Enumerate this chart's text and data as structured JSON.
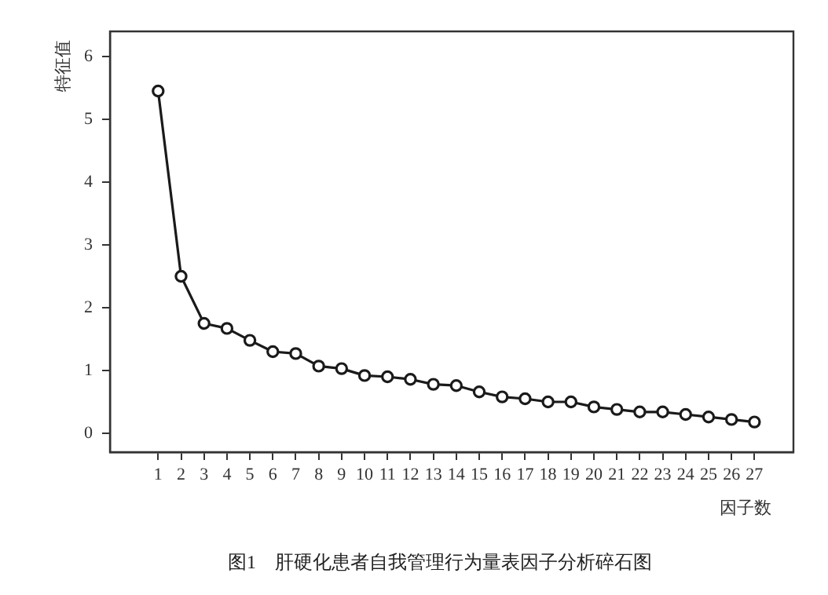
{
  "chart_data": {
    "type": "line",
    "title": "图1　肝硬化患者自我管理行为量表因子分析碎石图",
    "xlabel": "因子数",
    "ylabel": "特征值",
    "x": [
      1,
      2,
      3,
      4,
      5,
      6,
      7,
      8,
      9,
      10,
      11,
      12,
      13,
      14,
      15,
      16,
      17,
      18,
      19,
      20,
      21,
      22,
      23,
      24,
      25,
      26,
      27
    ],
    "xlim": [
      -1.1,
      28.7
    ],
    "xticks": [
      1,
      2,
      3,
      4,
      5,
      6,
      7,
      8,
      9,
      10,
      11,
      12,
      13,
      14,
      15,
      16,
      17,
      18,
      19,
      20,
      21,
      22,
      23,
      24,
      25,
      26,
      27
    ],
    "ylim": [
      -0.3,
      6.4
    ],
    "yticks": [
      0,
      1,
      2,
      3,
      4,
      5,
      6
    ],
    "series": [
      {
        "color": "#1a1a1a",
        "values": [
          5.45,
          2.5,
          1.75,
          1.67,
          1.48,
          1.3,
          1.27,
          1.07,
          1.03,
          0.92,
          0.9,
          0.86,
          0.78,
          0.76,
          0.66,
          0.58,
          0.55,
          0.5,
          0.5,
          0.42,
          0.38,
          0.34,
          0.34,
          0.3,
          0.26,
          0.22,
          0.18
        ]
      }
    ],
    "marker": "circle",
    "line_style": "solid",
    "grid": false,
    "legend": false
  }
}
